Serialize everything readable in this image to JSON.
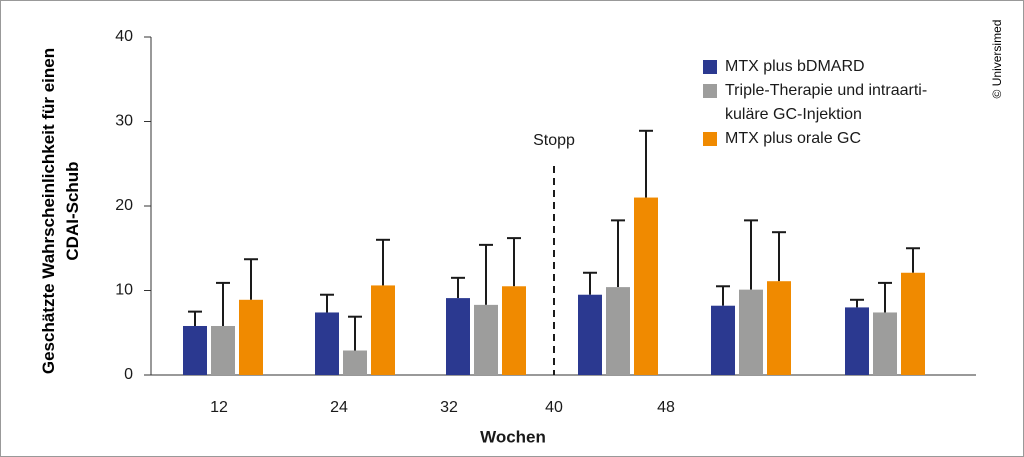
{
  "chart_data": {
    "type": "bar",
    "categories": [
      "12",
      "24",
      "32",
      "48",
      null,
      null
    ],
    "series": [
      {
        "name": "MTX plus bDMARD",
        "color": "#2b3990",
        "values": [
          5.8,
          7.4,
          9.1,
          9.5,
          8.2,
          8.0
        ],
        "errors": [
          1.7,
          2.1,
          2.4,
          2.6,
          2.3,
          0.9
        ]
      },
      {
        "name": "Triple-Therapie und intraarti-\nkuläre GC-Injektion",
        "color": "#9d9d9c",
        "values": [
          5.8,
          2.9,
          8.3,
          10.4,
          10.1,
          7.4
        ],
        "errors": [
          5.1,
          4.0,
          7.1,
          7.9,
          8.2,
          3.5
        ]
      },
      {
        "name": "MTX plus orale GC",
        "color": "#f08a00",
        "values": [
          8.9,
          10.6,
          10.5,
          21.0,
          11.1,
          12.1
        ],
        "errors": [
          4.8,
          5.4,
          5.7,
          7.9,
          5.8,
          2.9
        ]
      }
    ],
    "ylim": [
      0,
      40
    ],
    "yticks": [
      0,
      10,
      20,
      30,
      40
    ],
    "ylabel": "Geschätzte Wahrscheinlichkeit für einen\nCDAI-Schub",
    "xlabel": "Wochen",
    "stop_marker": {
      "text": "Stopp",
      "tick_label": "40"
    },
    "copyright": "© Universimed",
    "legend": "upper right"
  }
}
